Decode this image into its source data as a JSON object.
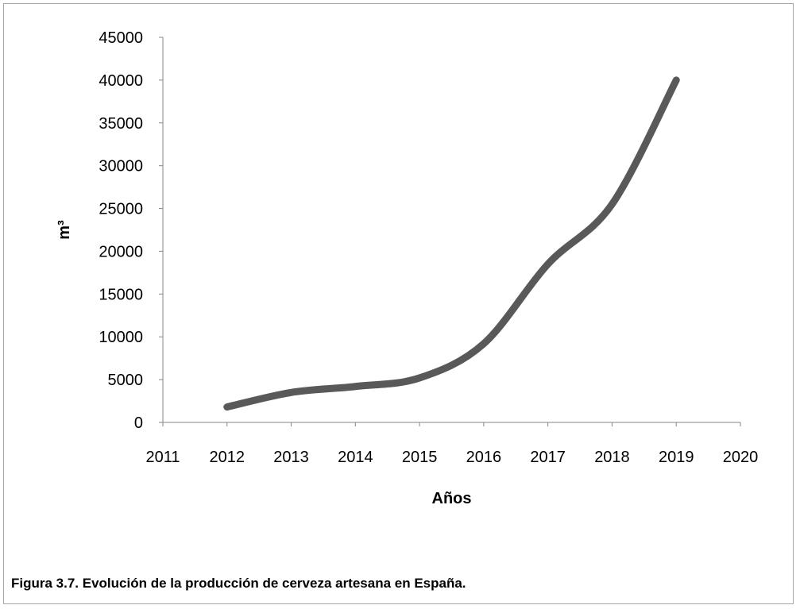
{
  "caption": "Figura 3.7. Evolución de la producción de cerveza artesana en España.",
  "chart_data": {
    "type": "line",
    "title": "",
    "xlabel": "Años",
    "ylabel": "m³",
    "xlim": [
      2011,
      2020
    ],
    "ylim": [
      0,
      45000
    ],
    "x_ticks": [
      2011,
      2012,
      2013,
      2014,
      2015,
      2016,
      2017,
      2018,
      2019,
      2020
    ],
    "y_ticks": [
      0,
      5000,
      10000,
      15000,
      20000,
      25000,
      30000,
      35000,
      40000,
      45000
    ],
    "grid": false,
    "legend": "none",
    "series": [
      {
        "color": "#595959",
        "smooth": true,
        "x": [
          2012,
          2013,
          2014,
          2015,
          2016,
          2017,
          2018,
          2019
        ],
        "y": [
          1800,
          3500,
          4200,
          5200,
          9200,
          18500,
          25500,
          40000
        ]
      }
    ]
  }
}
